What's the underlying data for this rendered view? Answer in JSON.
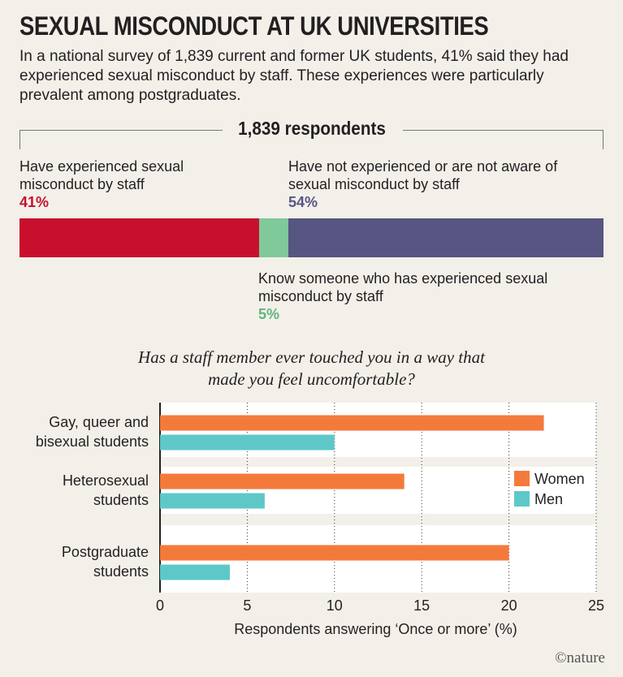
{
  "header": {
    "title": "SEXUAL MISCONDUCT AT UK UNIVERSITIES",
    "subtitle": "In a national survey of 1,839 current and former UK students, 41% said they had experienced sexual misconduct by staff. These experiences were particularly prevalent among postgraduates."
  },
  "survey": {
    "respondents_label": "1,839 respondents",
    "segments": [
      {
        "label": "Have experienced sexual misconduct by staff",
        "percent_label": "41%",
        "value": 41,
        "color": "#c8102e"
      },
      {
        "label": "Know someone who has experienced sexual misconduct by staff",
        "percent_label": "5%",
        "value": 5,
        "color": "#7fc99a"
      },
      {
        "label": "Have not experienced or are not aware of sexual misconduct by staff",
        "percent_label": "54%",
        "value": 54,
        "color": "#575582"
      }
    ]
  },
  "colors": {
    "women": "#f47a3c",
    "men": "#5ec8c8",
    "experienced_text": "#c8102e",
    "know_text": "#5fb57e",
    "not_text": "#575582"
  },
  "chart_data": {
    "type": "bar",
    "orientation": "horizontal",
    "title": "Has a staff member ever touched you in a way that made you feel uncomfortable?",
    "categories": [
      "Gay, queer and bisexual students",
      "Heterosexual students",
      "Postgraduate students"
    ],
    "series": [
      {
        "name": "Women",
        "values": [
          22,
          14,
          20
        ],
        "color": "#f47a3c"
      },
      {
        "name": "Men",
        "values": [
          10,
          6,
          4
        ],
        "color": "#5ec8c8"
      }
    ],
    "xlabel": "Respondents answering ‘Once or more’ (%)",
    "xlim": [
      0,
      25
    ],
    "xticks": [
      0,
      5,
      10,
      15,
      20,
      25
    ],
    "grid": "vertical dotted",
    "legend": "right"
  },
  "credit": "©nature"
}
